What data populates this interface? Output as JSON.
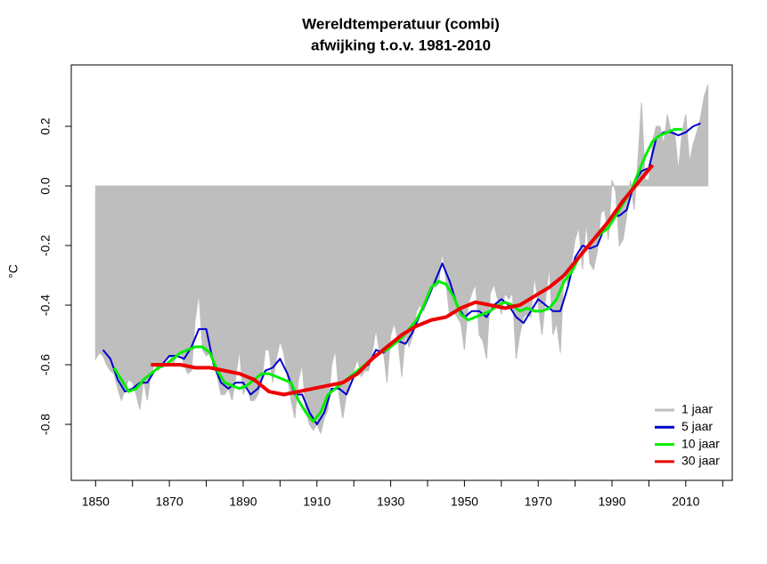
{
  "chart_data": {
    "type": "line",
    "title": "Wereldtemperatuur (combi)",
    "subtitle": "afwijking t.o.v. 1981-2010",
    "y_label": "°C",
    "xlim": [
      1843.4,
      2022.6
    ],
    "ylim": [
      -0.988,
      0.406
    ],
    "xticks": [
      1850,
      1870,
      1890,
      1910,
      1930,
      1950,
      1970,
      1990,
      2010
    ],
    "xminor_ticks": [
      1860,
      1880,
      1900,
      1920,
      1940,
      1960,
      1980,
      2000,
      2020
    ],
    "yticks": [
      {
        "value": -0.8,
        "label": "-0.8"
      },
      {
        "value": -0.6,
        "label": "-0.6"
      },
      {
        "value": -0.4,
        "label": "-0.4"
      },
      {
        "value": -0.2,
        "label": "-0.2"
      },
      {
        "value": 0,
        "label": "0.0"
      },
      {
        "value": 0.2,
        "label": "0.2"
      }
    ],
    "legend": "bottom-right",
    "series": [
      {
        "name": "1 jaar",
        "color": "#bebebe",
        "style": "area",
        "x": [
          1850,
          1851,
          1852,
          1853,
          1854,
          1855,
          1856,
          1857,
          1858,
          1859,
          1860,
          1861,
          1862,
          1863,
          1864,
          1865,
          1866,
          1867,
          1868,
          1869,
          1870,
          1871,
          1872,
          1873,
          1874,
          1875,
          1876,
          1877,
          1878,
          1879,
          1880,
          1881,
          1882,
          1883,
          1884,
          1885,
          1886,
          1887,
          1888,
          1889,
          1890,
          1891,
          1892,
          1893,
          1894,
          1895,
          1896,
          1897,
          1898,
          1899,
          1900,
          1901,
          1902,
          1903,
          1904,
          1905,
          1906,
          1907,
          1908,
          1909,
          1910,
          1911,
          1912,
          1913,
          1914,
          1915,
          1916,
          1917,
          1918,
          1919,
          1920,
          1921,
          1922,
          1923,
          1924,
          1925,
          1926,
          1927,
          1928,
          1929,
          1930,
          1931,
          1932,
          1933,
          1934,
          1935,
          1936,
          1937,
          1938,
          1939,
          1940,
          1941,
          1942,
          1943,
          1944,
          1945,
          1946,
          1947,
          1948,
          1949,
          1950,
          1951,
          1952,
          1953,
          1954,
          1955,
          1956,
          1957,
          1958,
          1959,
          1960,
          1961,
          1962,
          1963,
          1964,
          1965,
          1966,
          1967,
          1968,
          1969,
          1970,
          1971,
          1972,
          1973,
          1974,
          1975,
          1976,
          1977,
          1978,
          1979,
          1980,
          1981,
          1982,
          1983,
          1984,
          1985,
          1986,
          1987,
          1988,
          1989,
          1990,
          1991,
          1992,
          1993,
          1994,
          1995,
          1996,
          1997,
          1998,
          1999,
          2000,
          2001,
          2002,
          2003,
          2004,
          2005,
          2006,
          2007,
          2008,
          2009,
          2010,
          2011,
          2012,
          2013,
          2014,
          2015,
          2016
        ],
        "values": [
          -0.58,
          -0.56,
          -0.57,
          -0.6,
          -0.62,
          -0.63,
          -0.68,
          -0.72,
          -0.68,
          -0.65,
          -0.66,
          -0.7,
          -0.75,
          -0.65,
          -0.72,
          -0.63,
          -0.6,
          -0.62,
          -0.6,
          -0.58,
          -0.57,
          -0.6,
          -0.57,
          -0.56,
          -0.6,
          -0.63,
          -0.62,
          -0.45,
          -0.36,
          -0.55,
          -0.57,
          -0.56,
          -0.58,
          -0.64,
          -0.7,
          -0.7,
          -0.68,
          -0.72,
          -0.64,
          -0.55,
          -0.7,
          -0.66,
          -0.72,
          -0.72,
          -0.7,
          -0.66,
          -0.55,
          -0.55,
          -0.66,
          -0.58,
          -0.52,
          -0.56,
          -0.64,
          -0.72,
          -0.78,
          -0.65,
          -0.6,
          -0.76,
          -0.8,
          -0.82,
          -0.8,
          -0.83,
          -0.78,
          -0.75,
          -0.6,
          -0.55,
          -0.7,
          -0.78,
          -0.7,
          -0.65,
          -0.62,
          -0.58,
          -0.64,
          -0.62,
          -0.62,
          -0.56,
          -0.48,
          -0.56,
          -0.55,
          -0.66,
          -0.5,
          -0.46,
          -0.52,
          -0.64,
          -0.5,
          -0.54,
          -0.5,
          -0.42,
          -0.4,
          -0.42,
          -0.38,
          -0.33,
          -0.34,
          -0.33,
          -0.22,
          -0.32,
          -0.44,
          -0.42,
          -0.44,
          -0.46,
          -0.55,
          -0.4,
          -0.36,
          -0.33,
          -0.5,
          -0.52,
          -0.58,
          -0.36,
          -0.33,
          -0.38,
          -0.43,
          -0.36,
          -0.38,
          -0.36,
          -0.58,
          -0.5,
          -0.44,
          -0.43,
          -0.44,
          -0.3,
          -0.4,
          -0.5,
          -0.38,
          -0.27,
          -0.5,
          -0.46,
          -0.56,
          -0.28,
          -0.33,
          -0.26,
          -0.18,
          -0.14,
          -0.28,
          -0.12,
          -0.26,
          -0.28,
          -0.22,
          -0.09,
          -0.08,
          -0.18,
          0.02,
          -0.02,
          -0.2,
          -0.18,
          -0.1,
          0.02,
          -0.08,
          0.08,
          0.28,
          0.02,
          0.02,
          0.15,
          0.2,
          0.2,
          0.14,
          0.24,
          0.18,
          0.18,
          0.05,
          0.18,
          0.24,
          0.08,
          0.14,
          0.18,
          0.23,
          0.3,
          0.34
        ]
      },
      {
        "name": "5 jaar",
        "color": "#0000cd",
        "style": "line",
        "width": 2,
        "x": [
          1852,
          1854,
          1856,
          1858,
          1860,
          1862,
          1864,
          1866,
          1868,
          1870,
          1872,
          1874,
          1876,
          1878,
          1880,
          1882,
          1884,
          1886,
          1888,
          1890,
          1892,
          1894,
          1896,
          1898,
          1900,
          1902,
          1904,
          1906,
          1908,
          1910,
          1912,
          1914,
          1916,
          1918,
          1920,
          1922,
          1924,
          1926,
          1928,
          1930,
          1932,
          1934,
          1936,
          1938,
          1940,
          1942,
          1944,
          1946,
          1948,
          1950,
          1952,
          1954,
          1956,
          1958,
          1960,
          1962,
          1964,
          1966,
          1968,
          1970,
          1972,
          1974,
          1976,
          1978,
          1980,
          1982,
          1984,
          1986,
          1988,
          1990,
          1992,
          1994,
          1996,
          1998,
          2000,
          2002,
          2004,
          2006,
          2008,
          2010,
          2012,
          2014
        ],
        "values": [
          -0.55,
          -0.58,
          -0.65,
          -0.69,
          -0.68,
          -0.66,
          -0.66,
          -0.62,
          -0.6,
          -0.57,
          -0.57,
          -0.58,
          -0.54,
          -0.48,
          -0.48,
          -0.6,
          -0.66,
          -0.68,
          -0.66,
          -0.66,
          -0.7,
          -0.68,
          -0.62,
          -0.61,
          -0.58,
          -0.63,
          -0.7,
          -0.7,
          -0.76,
          -0.8,
          -0.76,
          -0.68,
          -0.68,
          -0.7,
          -0.64,
          -0.61,
          -0.6,
          -0.55,
          -0.56,
          -0.54,
          -0.52,
          -0.53,
          -0.49,
          -0.43,
          -0.38,
          -0.32,
          -0.26,
          -0.32,
          -0.4,
          -0.44,
          -0.42,
          -0.42,
          -0.44,
          -0.4,
          -0.38,
          -0.4,
          -0.44,
          -0.46,
          -0.42,
          -0.38,
          -0.4,
          -0.42,
          -0.42,
          -0.34,
          -0.24,
          -0.2,
          -0.21,
          -0.2,
          -0.14,
          -0.1,
          -0.1,
          -0.08,
          0.01,
          0.05,
          0.06,
          0.16,
          0.18,
          0.18,
          0.17,
          0.18,
          0.2,
          0.21
        ]
      },
      {
        "name": "10 jaar",
        "color": "#00ee00",
        "style": "line",
        "width": 3,
        "x": [
          1855,
          1857,
          1859,
          1861,
          1863,
          1865,
          1867,
          1869,
          1871,
          1873,
          1875,
          1877,
          1879,
          1881,
          1883,
          1885,
          1887,
          1889,
          1891,
          1893,
          1895,
          1897,
          1899,
          1901,
          1903,
          1905,
          1907,
          1909,
          1911,
          1913,
          1915,
          1917,
          1919,
          1921,
          1923,
          1925,
          1927,
          1929,
          1931,
          1933,
          1935,
          1937,
          1939,
          1941,
          1943,
          1945,
          1947,
          1949,
          1951,
          1953,
          1955,
          1957,
          1959,
          1961,
          1963,
          1965,
          1967,
          1969,
          1971,
          1973,
          1975,
          1977,
          1979,
          1981,
          1983,
          1985,
          1987,
          1989,
          1991,
          1993,
          1995,
          1997,
          1999,
          2001,
          2003,
          2005,
          2007,
          2009
        ],
        "values": [
          -0.61,
          -0.65,
          -0.69,
          -0.68,
          -0.65,
          -0.63,
          -0.61,
          -0.6,
          -0.58,
          -0.56,
          -0.55,
          -0.54,
          -0.54,
          -0.56,
          -0.62,
          -0.66,
          -0.67,
          -0.68,
          -0.67,
          -0.65,
          -0.63,
          -0.63,
          -0.64,
          -0.65,
          -0.66,
          -0.72,
          -0.76,
          -0.79,
          -0.76,
          -0.7,
          -0.68,
          -0.66,
          -0.64,
          -0.62,
          -0.6,
          -0.58,
          -0.56,
          -0.55,
          -0.53,
          -0.51,
          -0.48,
          -0.45,
          -0.4,
          -0.34,
          -0.32,
          -0.33,
          -0.37,
          -0.43,
          -0.45,
          -0.44,
          -0.43,
          -0.42,
          -0.4,
          -0.39,
          -0.4,
          -0.42,
          -0.41,
          -0.42,
          -0.42,
          -0.41,
          -0.38,
          -0.32,
          -0.29,
          -0.24,
          -0.21,
          -0.18,
          -0.16,
          -0.14,
          -0.1,
          -0.06,
          -0.02,
          0.04,
          0.1,
          0.15,
          0.17,
          0.18,
          0.19,
          0.19
        ]
      },
      {
        "name": "30 jaar",
        "color": "#ee0000",
        "style": "line",
        "width": 4,
        "x": [
          1865,
          1869,
          1873,
          1877,
          1881,
          1885,
          1889,
          1893,
          1897,
          1901,
          1905,
          1909,
          1913,
          1917,
          1921,
          1925,
          1929,
          1933,
          1937,
          1941,
          1945,
          1949,
          1953,
          1957,
          1961,
          1965,
          1969,
          1973,
          1977,
          1981,
          1985,
          1989,
          1993,
          1997,
          2001
        ],
        "values": [
          -0.6,
          -0.6,
          -0.6,
          -0.61,
          -0.61,
          -0.62,
          -0.63,
          -0.65,
          -0.69,
          -0.7,
          -0.69,
          -0.68,
          -0.67,
          -0.66,
          -0.63,
          -0.58,
          -0.54,
          -0.5,
          -0.47,
          -0.45,
          -0.44,
          -0.41,
          -0.39,
          -0.4,
          -0.41,
          -0.4,
          -0.37,
          -0.34,
          -0.3,
          -0.24,
          -0.18,
          -0.12,
          -0.05,
          0.01,
          0.07
        ]
      }
    ]
  }
}
